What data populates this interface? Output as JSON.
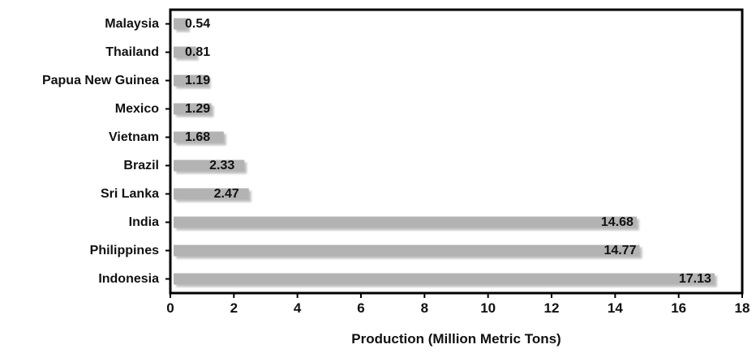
{
  "chart_data": {
    "type": "bar",
    "orientation": "horizontal",
    "categories": [
      "Malaysia",
      "Thailand",
      "Papua New Guinea",
      "Mexico",
      "Vietnam",
      "Brazil",
      "Sri Lanka",
      "India",
      "Philippines",
      "Indonesia"
    ],
    "values": [
      0.54,
      0.81,
      1.19,
      1.29,
      1.68,
      2.33,
      2.47,
      14.68,
      14.77,
      17.13
    ],
    "value_labels": [
      "0.54",
      "0.81",
      "1.19",
      "1.29",
      "1.68",
      "2.33",
      "2.47",
      "14.68",
      "14.77",
      "17.13"
    ],
    "title": "",
    "xlabel": "Production (Million Metric Tons)",
    "ylabel": "",
    "xlim": [
      0,
      18
    ],
    "xticks": [
      0,
      2,
      4,
      6,
      8,
      10,
      12,
      14,
      16,
      18
    ],
    "grid": false,
    "legend": "none",
    "colors": {
      "bar": "#b3b3b3",
      "bar_shadow": "#8a8a8a",
      "frame": "#000000",
      "text": "#111111"
    }
  }
}
